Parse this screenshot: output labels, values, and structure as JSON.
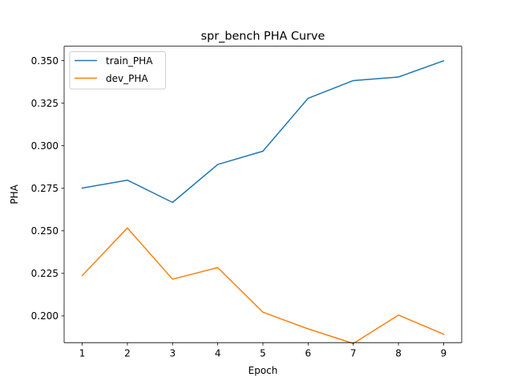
{
  "chart_data": {
    "type": "line",
    "title": "spr_bench PHA Curve",
    "xlabel": "Epoch",
    "ylabel": "PHA",
    "x": [
      1,
      2,
      3,
      4,
      5,
      6,
      7,
      8,
      9
    ],
    "xticks": [
      "1",
      "2",
      "3",
      "4",
      "5",
      "6",
      "7",
      "8",
      "9"
    ],
    "yticks": [
      "0.200",
      "0.225",
      "0.250",
      "0.275",
      "0.300",
      "0.325",
      "0.350"
    ],
    "xlim": [
      0.6,
      9.4
    ],
    "ylim": [
      0.1843,
      0.3585
    ],
    "grid": false,
    "legend_position": "top-left",
    "series": [
      {
        "name": "train_PHA",
        "color": "#1f77b4",
        "values": [
          0.2751,
          0.2798,
          0.2667,
          0.289,
          0.2968,
          0.3279,
          0.3383,
          0.3404,
          0.3499
        ]
      },
      {
        "name": "dev_PHA",
        "color": "#ff7f0e",
        "values": [
          0.2237,
          0.2517,
          0.2216,
          0.2284,
          0.2022,
          0.1924,
          0.1838,
          0.2005,
          0.1893
        ]
      }
    ]
  }
}
